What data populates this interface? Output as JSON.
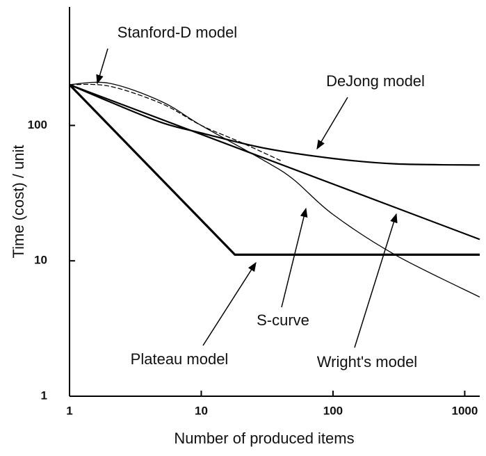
{
  "chart_data": {
    "type": "line",
    "xlabel": "Number of produced items",
    "ylabel": "Time (cost) / unit",
    "log_x": true,
    "log_y": true,
    "xlim": [
      1,
      1300
    ],
    "ylim": [
      1,
      750
    ],
    "xticks": [
      1,
      10,
      100,
      1000
    ],
    "yticks": [
      1,
      10,
      100
    ],
    "series": [
      {
        "name": "Stanford-D model",
        "color": "#000000",
        "x": [
          1,
          2,
          5,
          10,
          20,
          40
        ],
        "values": [
          200,
          195,
          145,
          100,
          75,
          55
        ]
      },
      {
        "name": "DeJong model",
        "color": "#000000",
        "x": [
          1,
          2,
          5,
          10,
          30,
          100,
          300,
          1300
        ],
        "values": [
          200,
          150,
          105,
          88,
          68,
          57,
          52,
          51
        ]
      },
      {
        "name": "S-curve",
        "color": "#000000",
        "x": [
          1,
          2,
          5,
          10,
          30,
          50,
          100,
          300,
          1300
        ],
        "values": [
          200,
          205,
          150,
          100,
          55,
          40,
          22,
          11,
          5.4
        ]
      },
      {
        "name": "Plateau model",
        "color": "#000000",
        "x": [
          1,
          18,
          1300
        ],
        "values": [
          200,
          11.1,
          11.1
        ]
      },
      {
        "name": "Wright's model",
        "color": "#000000",
        "x": [
          1,
          1300
        ],
        "values": [
          200,
          14.4
        ]
      }
    ]
  }
}
